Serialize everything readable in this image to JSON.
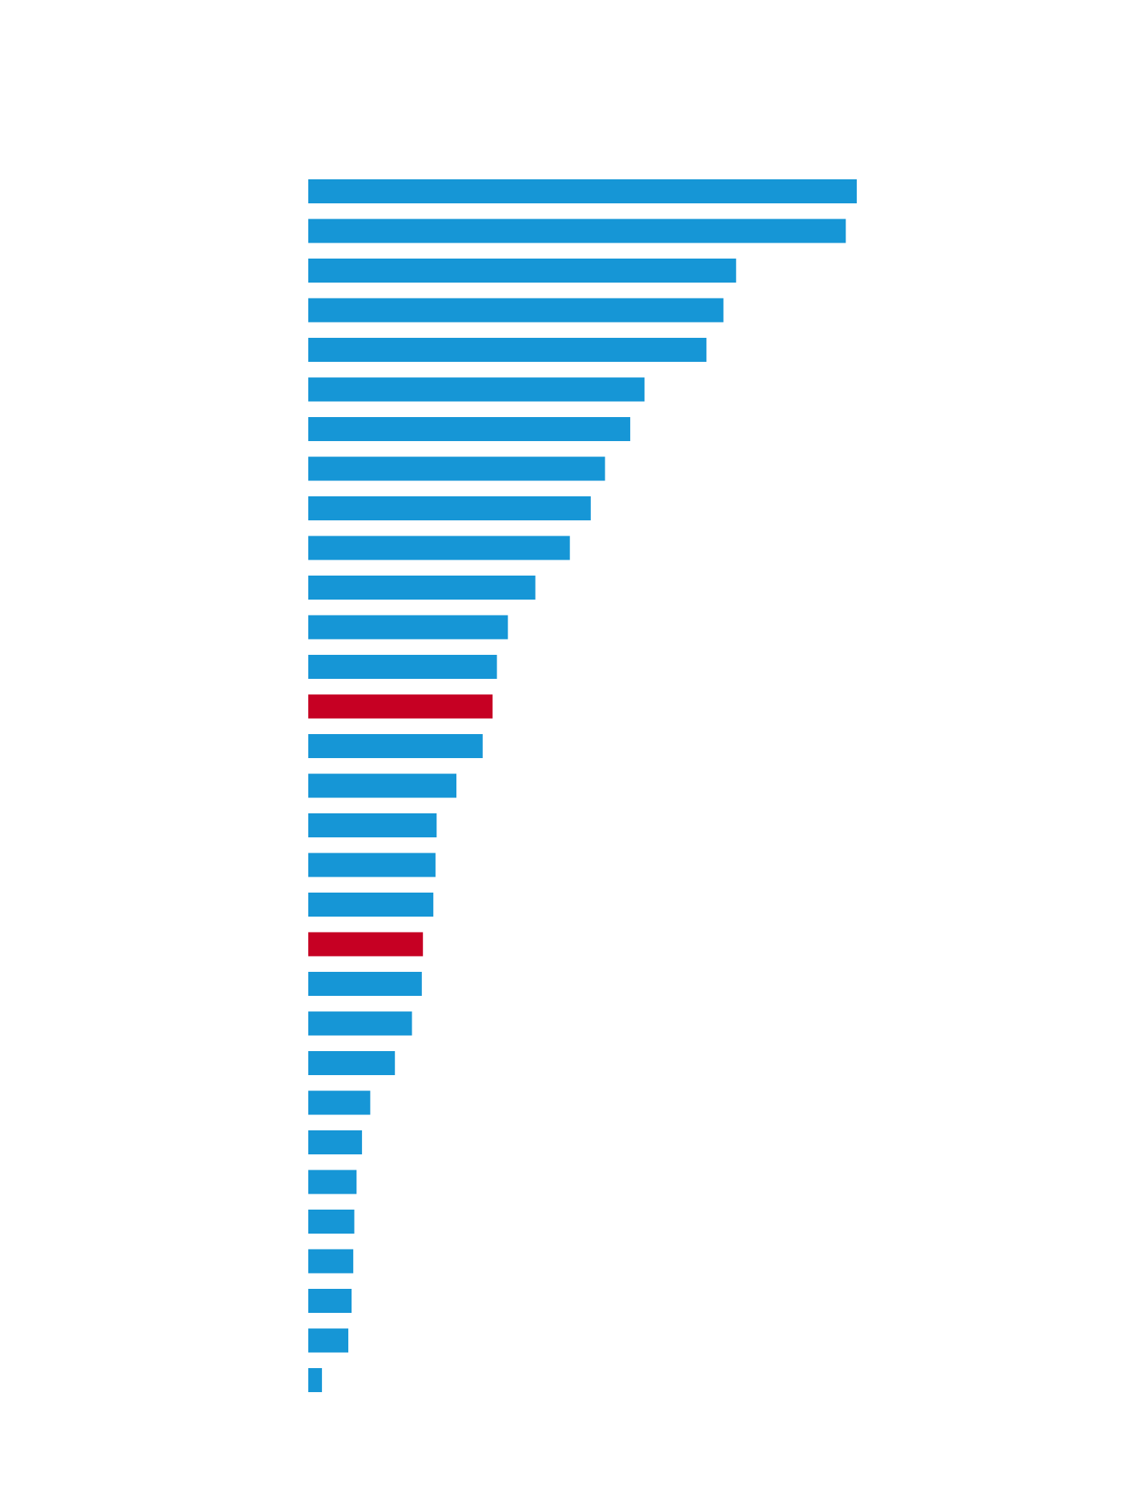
{
  "chart_data": {
    "type": "bar",
    "orientation": "horizontal",
    "sorted": "descending",
    "xlim": [
      0,
      100
    ],
    "grid": false,
    "legend": "none",
    "values": [
      100,
      98,
      78,
      75.7,
      72.6,
      61.3,
      58.7,
      54.1,
      51.5,
      47.7,
      41.4,
      36.4,
      34.4,
      33.6,
      31.8,
      27,
      23.4,
      23.2,
      22.8,
      20.9,
      20.7,
      18.9,
      15.8,
      11.3,
      9.8,
      8.8,
      8.4,
      8.2,
      7.9,
      7.3,
      2.5
    ],
    "highlighted_indices": [
      13,
      19
    ],
    "colors": {
      "bar": "#1696d6",
      "highlight": "#c60023",
      "background": "#ffffff"
    }
  }
}
